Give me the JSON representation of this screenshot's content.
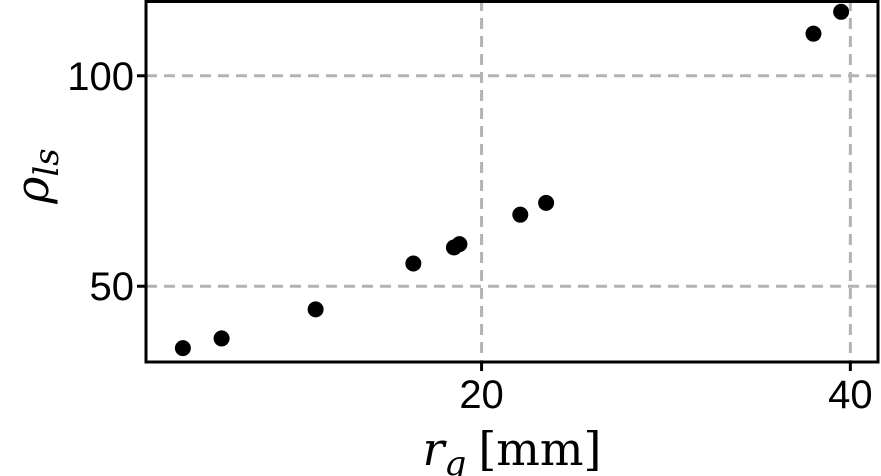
{
  "chart_data": {
    "type": "scatter",
    "title": "",
    "xlabel": {
      "symbol": "r",
      "subscript": "g",
      "unit": "[mm]"
    },
    "ylabel": {
      "symbol": "ρ",
      "subscript": "ls"
    },
    "xlim": [
      1.8,
      41.5
    ],
    "ylim": [
      32,
      118
    ],
    "xticks": [
      20,
      40
    ],
    "yticks": [
      50,
      100
    ],
    "xtick_labels": [
      "20",
      "40"
    ],
    "ytick_labels": [
      "50",
      "100"
    ],
    "grid": true,
    "grid_style": "dashed",
    "marker_color": "#000000",
    "grid_color": "#b3b3b3",
    "x": [
      3.8,
      5.9,
      11.0,
      16.3,
      18.5,
      18.8,
      22.1,
      23.5,
      38.0,
      39.5
    ],
    "y": [
      35.3,
      37.6,
      44.5,
      55.4,
      59.2,
      60.0,
      67.0,
      69.8,
      110.0,
      115.2
    ]
  }
}
